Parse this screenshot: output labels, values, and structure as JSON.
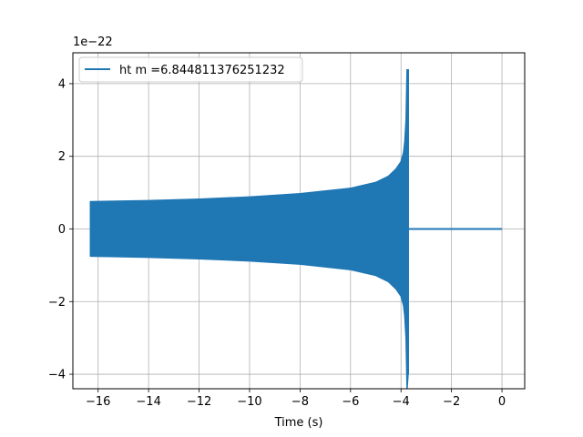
{
  "chart_data": {
    "type": "line",
    "xlabel": "Time (s)",
    "ylabel": "",
    "offset_text": "1e−22",
    "xlim": [
      -17.0,
      0.9
    ],
    "ylim": [
      -4.4,
      4.85
    ],
    "xticks": [
      -16,
      -14,
      -12,
      -10,
      -8,
      -6,
      -4,
      -2,
      0
    ],
    "xtick_labels": [
      "−16",
      "−14",
      "−12",
      "−10",
      "−8",
      "−6",
      "−4",
      "−2",
      "0"
    ],
    "yticks": [
      -4,
      -2,
      0,
      2,
      4
    ],
    "ytick_labels": [
      "−4",
      "−2",
      "0",
      "2",
      "4"
    ],
    "grid": true,
    "legend_position": "top-left",
    "series": [
      {
        "name": "ht m =6.844811376251232",
        "color": "#1f77b4",
        "chirp_start": -16.3,
        "merger_time": -3.72,
        "end_time": 0.0,
        "envelope": {
          "t": [
            -16.3,
            -14,
            -12,
            -10,
            -8,
            -6,
            -5,
            -4.5,
            -4.2,
            -4.0,
            -3.9,
            -3.85,
            -3.8,
            -3.76
          ],
          "amp": [
            0.75,
            0.78,
            0.82,
            0.88,
            0.97,
            1.12,
            1.28,
            1.45,
            1.65,
            1.85,
            2.1,
            2.4,
            3.0,
            4.4
          ]
        },
        "min_at_merger": -4.0
      }
    ]
  }
}
